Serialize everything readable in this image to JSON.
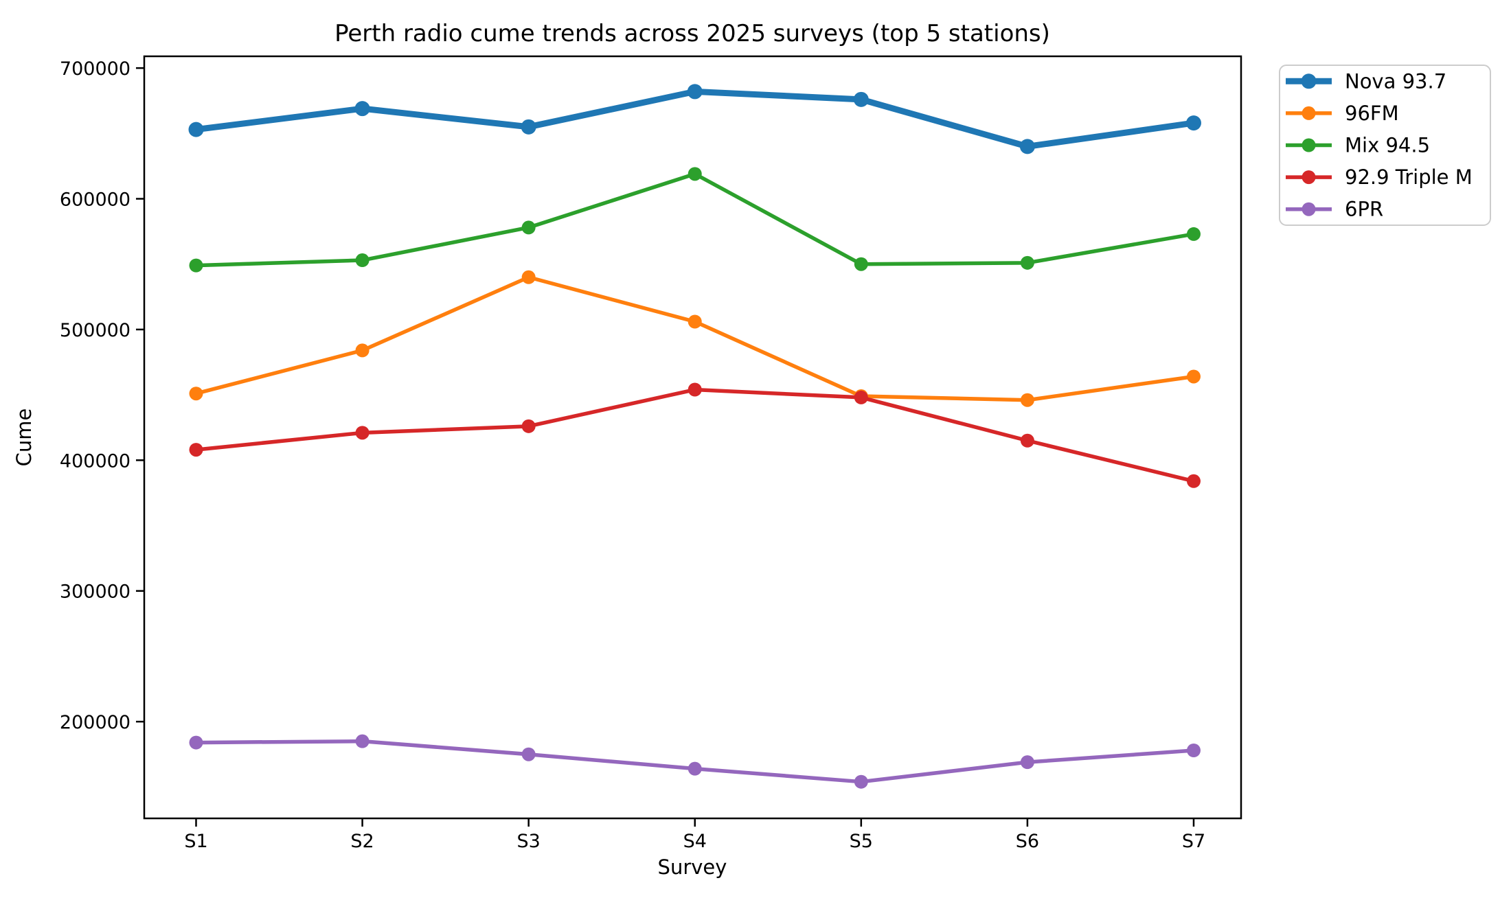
{
  "chart_data": {
    "type": "line",
    "title": "Perth radio cume trends across 2025 surveys (top 5 stations)",
    "xlabel": "Survey",
    "ylabel": "Cume",
    "categories": [
      "S1",
      "S2",
      "S3",
      "S4",
      "S5",
      "S6",
      "S7"
    ],
    "series": [
      {
        "name": "Nova 93.7",
        "color": "#1f77b4",
        "thick": true,
        "values": [
          653000,
          669000,
          655000,
          682000,
          676000,
          640000,
          658000
        ]
      },
      {
        "name": "96FM",
        "color": "#ff7f0e",
        "thick": false,
        "values": [
          451000,
          484000,
          540000,
          506000,
          449000,
          446000,
          464000
        ]
      },
      {
        "name": "Mix 94.5",
        "color": "#2ca02c",
        "thick": false,
        "values": [
          549000,
          553000,
          578000,
          619000,
          550000,
          551000,
          573000
        ]
      },
      {
        "name": "92.9 Triple M",
        "color": "#d62728",
        "thick": false,
        "values": [
          408000,
          421000,
          426000,
          454000,
          448000,
          415000,
          384000
        ]
      },
      {
        "name": "6PR",
        "color": "#9467bd",
        "thick": false,
        "values": [
          184000,
          185000,
          175000,
          164000,
          154000,
          169000,
          178000
        ]
      }
    ],
    "yticks": [
      200000,
      300000,
      400000,
      500000,
      600000,
      700000
    ],
    "ylim": [
      126000,
      709000
    ],
    "grid": false,
    "legend_position": "outside-upper-right",
    "axis_color": "#000000",
    "legend_border_color": "#cccccc",
    "background_color": "#ffffff"
  }
}
